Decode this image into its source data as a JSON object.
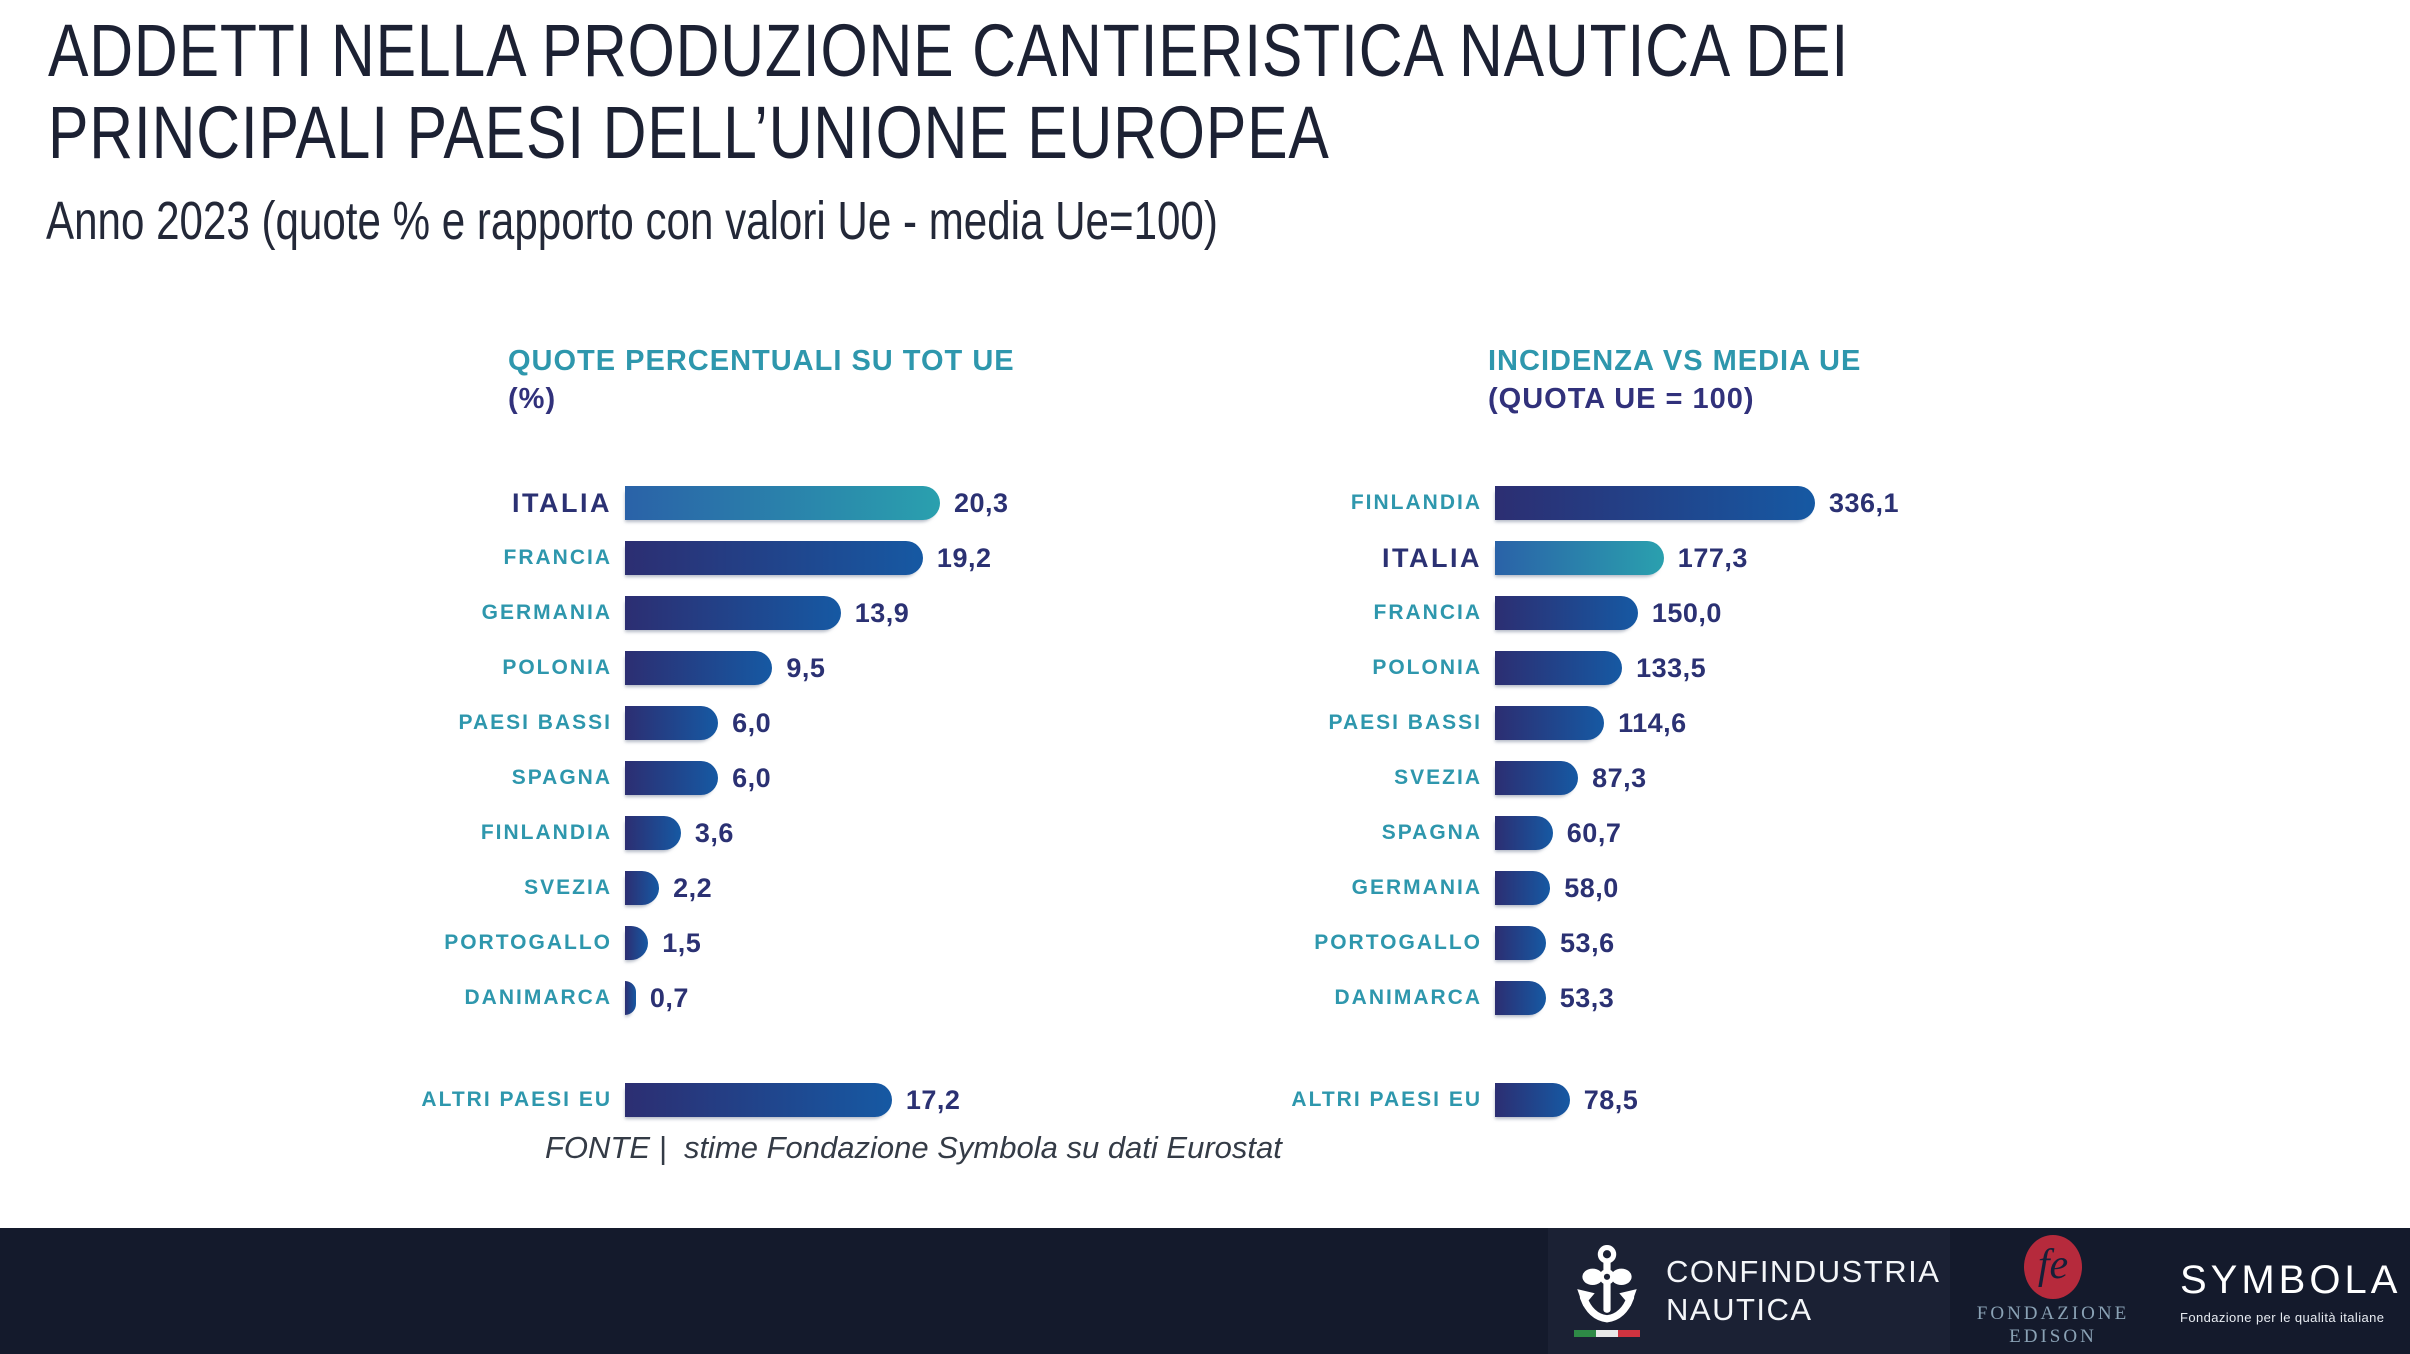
{
  "page": {
    "title_line1": "ADDETTI NELLA PRODUZIONE CANTIERISTICA NAUTICA DEI",
    "title_line2": "PRINCIPALI PAESI DELL’UNIONE EUROPEA",
    "subtitle": "Anno 2023 (quote % e rapporto con valori Ue - media Ue=100)",
    "source": "FONTE |  stime Fondazione Symbola su dati Eurostat"
  },
  "chart_data": [
    {
      "type": "bar",
      "orientation": "horizontal",
      "title": "QUOTE PERCENTUALI SU TOT UE",
      "subtitle": "(%)",
      "categories": [
        "ITALIA",
        "FRANCIA",
        "GERMANIA",
        "POLONIA",
        "PAESI BASSI",
        "SPAGNA",
        "FINLANDIA",
        "SVEZIA",
        "PORTOGALLO",
        "DANIMARCA",
        "ALTRI PAESI EU"
      ],
      "values": [
        20.3,
        19.2,
        13.9,
        9.5,
        6.0,
        6.0,
        3.6,
        2.2,
        1.5,
        0.7,
        17.2
      ],
      "value_labels": [
        "20,3",
        "19,2",
        "13,9",
        "9,5",
        "6,0",
        "6,0",
        "3,6",
        "2,2",
        "1,5",
        "0,7",
        "17,2"
      ],
      "highlight_category": "ITALIA",
      "gap_before_last": true,
      "xlim": [
        0,
        20.3
      ],
      "grid": false,
      "legend": false
    },
    {
      "type": "bar",
      "orientation": "horizontal",
      "title": "INCIDENZA VS MEDIA UE",
      "subtitle": "(QUOTA UE = 100)",
      "categories": [
        "FINLANDIA",
        "ITALIA",
        "FRANCIA",
        "POLONIA",
        "PAESI BASSI",
        "SVEZIA",
        "SPAGNA",
        "GERMANIA",
        "PORTOGALLO",
        "DANIMARCA",
        "ALTRI PAESI EU"
      ],
      "values": [
        336.1,
        177.3,
        150.0,
        133.5,
        114.6,
        87.3,
        60.7,
        58.0,
        53.6,
        53.3,
        78.5
      ],
      "value_labels": [
        "336,1",
        "177,3",
        "150,0",
        "133,5",
        "114,6",
        "87,3",
        "60,7",
        "58,0",
        "53,6",
        "53,3",
        "78,5"
      ],
      "highlight_category": "ITALIA",
      "gap_before_last": true,
      "xlim": [
        0,
        336.1
      ],
      "grid": false,
      "legend": false
    }
  ],
  "footer": {
    "confindustria": {
      "icon": "anchor-propeller-icon",
      "line1": "CONFINDUSTRIA",
      "line2": "NAUTICA"
    },
    "edison": {
      "monogram": "fe",
      "line1": "FONDAZIONE",
      "line2": "EDISON"
    },
    "symbola": {
      "wordmark": "SYMBOLA",
      "tagline": "Fondazione per le qualità italiane"
    }
  },
  "colors": {
    "teal_label": "#2e97ad",
    "navy_text": "#2b3173",
    "bar_gradient_start": "#2c2e72",
    "bar_gradient_end": "#1659a3",
    "highlight_gradient_start": "#2a62a8",
    "highlight_gradient_end": "#2aa0ae",
    "footer_bg": "#141a2c",
    "edison_red": "#b62a3c",
    "flag_green": "#2e8a46",
    "flag_red": "#cf3340"
  }
}
